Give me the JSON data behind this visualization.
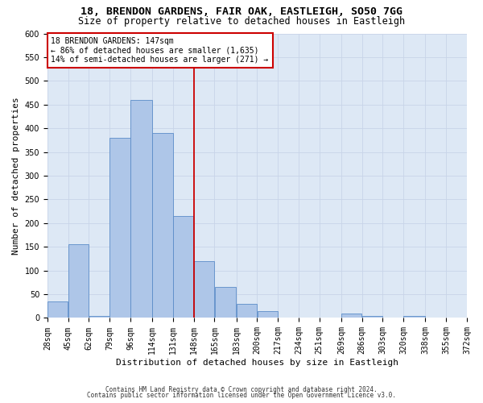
{
  "title1": "18, BRENDON GARDENS, FAIR OAK, EASTLEIGH, SO50 7GG",
  "title2": "Size of property relative to detached houses in Eastleigh",
  "xlabel": "Distribution of detached houses by size in Eastleigh",
  "ylabel": "Number of detached properties",
  "footer1": "Contains HM Land Registry data © Crown copyright and database right 2024.",
  "footer2": "Contains public sector information licensed under the Open Government Licence v3.0.",
  "property_label": "18 BRENDON GARDENS: 147sqm",
  "annotation_line1": "← 86% of detached houses are smaller (1,635)",
  "annotation_line2": "14% of semi-detached houses are larger (271) →",
  "bin_edges": [
    28,
    45,
    62,
    79,
    96,
    114,
    131,
    148,
    165,
    183,
    200,
    217,
    234,
    251,
    269,
    286,
    303,
    320,
    338,
    355,
    372
  ],
  "bar_heights": [
    35,
    155,
    5,
    380,
    460,
    390,
    215,
    120,
    65,
    30,
    15,
    0,
    0,
    0,
    10,
    5,
    0,
    5,
    0,
    0
  ],
  "bar_color": "#aec6e8",
  "bar_edge_color": "#5b8cc8",
  "vline_x": 148,
  "vline_color": "#cc0000",
  "ylim": [
    0,
    600
  ],
  "yticks": [
    0,
    50,
    100,
    150,
    200,
    250,
    300,
    350,
    400,
    450,
    500,
    550,
    600
  ],
  "xtick_labels": [
    "28sqm",
    "45sqm",
    "62sqm",
    "79sqm",
    "96sqm",
    "114sqm",
    "131sqm",
    "148sqm",
    "165sqm",
    "183sqm",
    "200sqm",
    "217sqm",
    "234sqm",
    "251sqm",
    "269sqm",
    "286sqm",
    "303sqm",
    "320sqm",
    "338sqm",
    "355sqm",
    "372sqm"
  ],
  "grid_color": "#c8d4e8",
  "bg_color": "#dde8f5",
  "title_fontsize": 9.5,
  "subtitle_fontsize": 8.5,
  "ylabel_fontsize": 8,
  "xlabel_fontsize": 8,
  "tick_fontsize": 7,
  "footer_fontsize": 5.5,
  "annotation_fontsize": 7,
  "annotation_box_color": "#ffffff",
  "annotation_box_edge": "#cc0000"
}
